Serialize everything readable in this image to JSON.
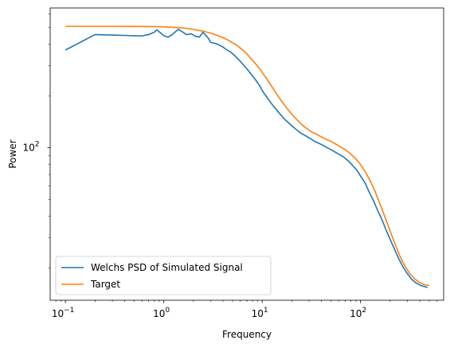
{
  "chart_data": {
    "type": "line",
    "title": "",
    "xlabel": "Frequency",
    "ylabel": "Power",
    "xscale": "log",
    "yscale": "log",
    "xlim": [
      0.07,
      700
    ],
    "ylim": [
      13,
      650
    ],
    "grid": false,
    "legend_position": "lower-left",
    "x_ticks": [
      {
        "value": 0.1,
        "base": "10",
        "exp": "−1"
      },
      {
        "value": 1,
        "base": "10",
        "exp": "0"
      },
      {
        "value": 10,
        "base": "10",
        "exp": "1"
      },
      {
        "value": 100,
        "base": "10",
        "exp": "2"
      }
    ],
    "y_ticks": [
      {
        "value": 100,
        "base": "10",
        "exp": "2"
      }
    ],
    "series": [
      {
        "name": "Welchs PSD of Simulated Signal",
        "color": "#1f77b4",
        "points": [
          [
            0.1,
            370
          ],
          [
            0.2,
            455
          ],
          [
            0.3,
            452
          ],
          [
            0.4,
            450
          ],
          [
            0.5,
            448
          ],
          [
            0.6,
            447
          ],
          [
            0.7,
            455
          ],
          [
            0.8,
            470
          ],
          [
            0.85,
            485
          ],
          [
            0.9,
            472
          ],
          [
            1.0,
            448
          ],
          [
            1.1,
            440
          ],
          [
            1.2,
            452
          ],
          [
            1.3,
            470
          ],
          [
            1.4,
            488
          ],
          [
            1.5,
            478
          ],
          [
            1.7,
            455
          ],
          [
            1.9,
            460
          ],
          [
            2.1,
            445
          ],
          [
            2.3,
            440
          ],
          [
            2.5,
            470
          ],
          [
            2.8,
            438
          ],
          [
            3.0,
            410
          ],
          [
            3.3,
            405
          ],
          [
            3.6,
            398
          ],
          [
            4.0,
            385
          ],
          [
            4.4,
            370
          ],
          [
            4.8,
            360
          ],
          [
            5.3,
            342
          ],
          [
            5.8,
            325
          ],
          [
            6.4,
            305
          ],
          [
            7.0,
            288
          ],
          [
            7.7,
            268
          ],
          [
            8.5,
            250
          ],
          [
            9.4,
            230
          ],
          [
            10.3,
            210
          ],
          [
            11.3,
            195
          ],
          [
            12.5,
            180
          ],
          [
            13.8,
            168
          ],
          [
            15.2,
            157
          ],
          [
            16.8,
            147
          ],
          [
            18.5,
            140
          ],
          [
            20.4,
            133
          ],
          [
            22.5,
            127
          ],
          [
            25,
            121
          ],
          [
            28,
            117
          ],
          [
            31,
            113
          ],
          [
            34,
            109
          ],
          [
            38,
            106
          ],
          [
            42,
            103
          ],
          [
            46,
            100
          ],
          [
            51,
            97
          ],
          [
            56,
            94
          ],
          [
            62,
            91
          ],
          [
            68,
            88
          ],
          [
            75,
            84
          ],
          [
            83,
            79
          ],
          [
            92,
            74
          ],
          [
            101,
            68
          ],
          [
            112,
            62
          ],
          [
            123,
            55
          ],
          [
            136,
            49
          ],
          [
            150,
            43
          ],
          [
            166,
            38
          ],
          [
            183,
            33
          ],
          [
            202,
            29
          ],
          [
            223,
            25.5
          ],
          [
            246,
            22.5
          ],
          [
            272,
            20.2
          ],
          [
            300,
            18.5
          ],
          [
            331,
            17.2
          ],
          [
            366,
            16.4
          ],
          [
            404,
            15.9
          ],
          [
            446,
            15.6
          ],
          [
            480,
            15.4
          ]
        ]
      },
      {
        "name": "Target",
        "color": "#ff7f0e",
        "points": [
          [
            0.1,
            508
          ],
          [
            0.2,
            508
          ],
          [
            0.3,
            508
          ],
          [
            0.5,
            507.5
          ],
          [
            0.7,
            507
          ],
          [
            1.0,
            505
          ],
          [
            1.3,
            501
          ],
          [
            1.6,
            497
          ],
          [
            2.0,
            488
          ],
          [
            2.5,
            477
          ],
          [
            3.0,
            464
          ],
          [
            3.5,
            450
          ],
          [
            4.0,
            437
          ],
          [
            4.5,
            423
          ],
          [
            5.0,
            408
          ],
          [
            5.6,
            393
          ],
          [
            6.3,
            372
          ],
          [
            7.1,
            348
          ],
          [
            7.9,
            325
          ],
          [
            8.9,
            300
          ],
          [
            10,
            275
          ],
          [
            11.2,
            250
          ],
          [
            12.6,
            226
          ],
          [
            14.1,
            205
          ],
          [
            15.8,
            186
          ],
          [
            17.8,
            170
          ],
          [
            20,
            157
          ],
          [
            22.4,
            146
          ],
          [
            25.1,
            137
          ],
          [
            28.2,
            130
          ],
          [
            31.6,
            124
          ],
          [
            35.5,
            120
          ],
          [
            39.8,
            116
          ],
          [
            44.7,
            112
          ],
          [
            50,
            109
          ],
          [
            56.2,
            105
          ],
          [
            63,
            101
          ],
          [
            70.8,
            97
          ],
          [
            79.4,
            92
          ],
          [
            89.1,
            86.5
          ],
          [
            100,
            80
          ],
          [
            112,
            72.5
          ],
          [
            126,
            64
          ],
          [
            141,
            55.5
          ],
          [
            158,
            47
          ],
          [
            178,
            39.3
          ],
          [
            200,
            32.8
          ],
          [
            224,
            27.6
          ],
          [
            251,
            23.5
          ],
          [
            282,
            20.6
          ],
          [
            316,
            18.6
          ],
          [
            355,
            17.3
          ],
          [
            398,
            16.5
          ],
          [
            447,
            16.0
          ],
          [
            500,
            15.8
          ]
        ]
      }
    ]
  }
}
